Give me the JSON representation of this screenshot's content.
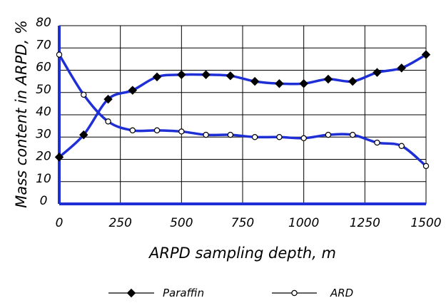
{
  "chart_data": {
    "type": "line",
    "xlabel": "ARPD sampling depth, m",
    "ylabel": "Mass content in ARPD, %",
    "xlim": [
      0,
      1500
    ],
    "ylim": [
      0,
      80
    ],
    "x_ticks": [
      "0",
      "250",
      "500",
      "750",
      "1000",
      "1250",
      "1500"
    ],
    "y_ticks": [
      "0",
      "10",
      "20",
      "30",
      "40",
      "50",
      "60",
      "70",
      "80"
    ],
    "grid": true,
    "legend_position": "bottom",
    "colors": {
      "line": "#1f2fd6",
      "axis": "#1f2fd6",
      "grid": "#000000",
      "text": "#000000"
    },
    "series": [
      {
        "name": "Paraffin",
        "marker": "filled-diamond",
        "x": [
          0,
          100,
          200,
          300,
          400,
          500,
          600,
          700,
          800,
          900,
          1000,
          1100,
          1200,
          1300,
          1400,
          1500
        ],
        "values": [
          21,
          31,
          47,
          51,
          57,
          58,
          58,
          57.5,
          55,
          54,
          54,
          56,
          55,
          59,
          61,
          67
        ]
      },
      {
        "name": "ARD",
        "marker": "open-circle",
        "x": [
          0,
          100,
          200,
          300,
          400,
          500,
          600,
          700,
          800,
          900,
          1000,
          1100,
          1200,
          1300,
          1400,
          1500
        ],
        "values": [
          67,
          49,
          37,
          33,
          33,
          32.5,
          31,
          31,
          30,
          30,
          29.5,
          31,
          31,
          27.5,
          26,
          17
        ]
      }
    ]
  }
}
